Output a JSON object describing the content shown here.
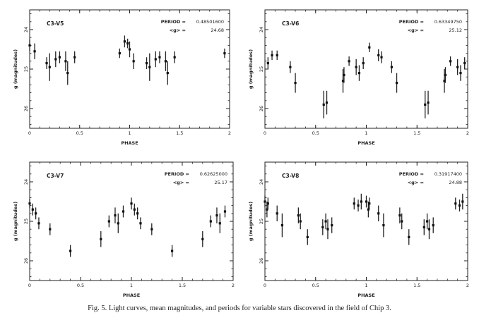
{
  "caption": "Fig. 5. Light curves, mean magnitudes, and periods for variable stars discovered in the field of Chip 3.",
  "chart_data": [
    {
      "type": "scatter",
      "label": "C3-V5",
      "period_label": "PERIOD =",
      "period": "0.48501600",
      "mean_label": "<g> =",
      "mean_g": "24.68",
      "xlabel": "PHASE",
      "ylabel": "g (magnitudes)",
      "xlim": [
        0,
        2
      ],
      "ylim": [
        26.5,
        23.5
      ],
      "xticks": [
        "0",
        "0.5",
        "1",
        "1.5",
        "2"
      ],
      "yticks": [
        "24",
        "25",
        "26"
      ],
      "points": [
        {
          "x": 0.0,
          "y": 24.4,
          "e": 0.15
        },
        {
          "x": 0.05,
          "y": 24.55,
          "e": 0.2
        },
        {
          "x": 0.17,
          "y": 24.85,
          "e": 0.15
        },
        {
          "x": 0.2,
          "y": 24.95,
          "e": 0.35
        },
        {
          "x": 0.26,
          "y": 24.75,
          "e": 0.2
        },
        {
          "x": 0.3,
          "y": 24.7,
          "e": 0.15
        },
        {
          "x": 0.36,
          "y": 24.8,
          "e": 0.25
        },
        {
          "x": 0.38,
          "y": 25.1,
          "e": 0.3
        },
        {
          "x": 0.45,
          "y": 24.7,
          "e": 0.15
        },
        {
          "x": 0.9,
          "y": 24.6,
          "e": 0.12
        },
        {
          "x": 0.95,
          "y": 24.3,
          "e": 0.15
        },
        {
          "x": 0.98,
          "y": 24.35,
          "e": 0.12
        },
        {
          "x": 1.0,
          "y": 24.5,
          "e": 0.2
        },
        {
          "x": 1.04,
          "y": 24.8,
          "e": 0.2
        },
        {
          "x": 1.17,
          "y": 24.85,
          "e": 0.15
        },
        {
          "x": 1.2,
          "y": 24.95,
          "e": 0.35
        },
        {
          "x": 1.26,
          "y": 24.75,
          "e": 0.2
        },
        {
          "x": 1.3,
          "y": 24.7,
          "e": 0.15
        },
        {
          "x": 1.36,
          "y": 24.8,
          "e": 0.25
        },
        {
          "x": 1.38,
          "y": 25.1,
          "e": 0.3
        },
        {
          "x": 1.45,
          "y": 24.7,
          "e": 0.15
        },
        {
          "x": 1.95,
          "y": 24.6,
          "e": 0.12
        }
      ]
    },
    {
      "type": "scatter",
      "label": "C3-V6",
      "period_label": "PERIOD =",
      "period": "0.63349750",
      "mean_label": "<g> =",
      "mean_g": "25.12",
      "xlabel": "PHASE",
      "ylabel": "g (magnitudes)",
      "xlim": [
        0,
        2
      ],
      "ylim": [
        26.5,
        23.5
      ],
      "xticks": [
        "0",
        "0.5",
        "1",
        "1.5",
        "2"
      ],
      "yticks": [
        "24",
        "25",
        "26"
      ],
      "points": [
        {
          "x": 0.03,
          "y": 24.85,
          "e": 0.15
        },
        {
          "x": 0.07,
          "y": 24.65,
          "e": 0.12
        },
        {
          "x": 0.12,
          "y": 24.65,
          "e": 0.12
        },
        {
          "x": 0.25,
          "y": 24.95,
          "e": 0.15
        },
        {
          "x": 0.3,
          "y": 25.35,
          "e": 0.25
        },
        {
          "x": 0.58,
          "y": 25.9,
          "e": 0.35
        },
        {
          "x": 0.61,
          "y": 25.85,
          "e": 0.3
        },
        {
          "x": 0.77,
          "y": 25.3,
          "e": 0.3
        },
        {
          "x": 0.78,
          "y": 25.15,
          "e": 0.2
        },
        {
          "x": 0.83,
          "y": 24.8,
          "e": 0.12
        },
        {
          "x": 0.9,
          "y": 24.95,
          "e": 0.2
        },
        {
          "x": 0.93,
          "y": 25.1,
          "e": 0.2
        },
        {
          "x": 0.97,
          "y": 24.85,
          "e": 0.15
        },
        {
          "x": 1.03,
          "y": 24.45,
          "e": 0.12
        },
        {
          "x": 1.12,
          "y": 24.65,
          "e": 0.15
        },
        {
          "x": 1.15,
          "y": 24.7,
          "e": 0.15
        },
        {
          "x": 1.25,
          "y": 24.95,
          "e": 0.15
        },
        {
          "x": 1.3,
          "y": 25.35,
          "e": 0.25
        },
        {
          "x": 1.58,
          "y": 25.9,
          "e": 0.35
        },
        {
          "x": 1.61,
          "y": 25.85,
          "e": 0.3
        },
        {
          "x": 1.77,
          "y": 25.3,
          "e": 0.3
        },
        {
          "x": 1.78,
          "y": 25.15,
          "e": 0.2
        },
        {
          "x": 1.83,
          "y": 24.8,
          "e": 0.12
        },
        {
          "x": 1.9,
          "y": 24.95,
          "e": 0.2
        },
        {
          "x": 1.93,
          "y": 25.1,
          "e": 0.2
        },
        {
          "x": 1.97,
          "y": 24.85,
          "e": 0.15
        }
      ]
    },
    {
      "type": "scatter",
      "label": "C3-V7",
      "period_label": "PERIOD =",
      "period": "0.62625000",
      "mean_label": "<g> =",
      "mean_g": "25.17",
      "xlabel": "PHASE",
      "ylabel": "g (magnitudes)",
      "xlim": [
        0,
        2
      ],
      "ylim": [
        26.5,
        23.5
      ],
      "xticks": [
        "0",
        "0.5",
        "1",
        "1.5",
        "2"
      ],
      "yticks": [
        "24",
        "25",
        "26"
      ],
      "points": [
        {
          "x": 0.0,
          "y": 24.55,
          "e": 0.12
        },
        {
          "x": 0.03,
          "y": 24.7,
          "e": 0.15
        },
        {
          "x": 0.06,
          "y": 24.8,
          "e": 0.15
        },
        {
          "x": 0.09,
          "y": 25.05,
          "e": 0.15
        },
        {
          "x": 0.2,
          "y": 25.2,
          "e": 0.15
        },
        {
          "x": 0.4,
          "y": 25.75,
          "e": 0.15
        },
        {
          "x": 0.7,
          "y": 25.45,
          "e": 0.2
        },
        {
          "x": 0.78,
          "y": 25.0,
          "e": 0.15
        },
        {
          "x": 0.84,
          "y": 24.85,
          "e": 0.2
        },
        {
          "x": 0.87,
          "y": 25.05,
          "e": 0.25
        },
        {
          "x": 0.92,
          "y": 24.75,
          "e": 0.15
        },
        {
          "x": 1.0,
          "y": 24.55,
          "e": 0.15
        },
        {
          "x": 1.03,
          "y": 24.7,
          "e": 0.15
        },
        {
          "x": 1.06,
          "y": 24.8,
          "e": 0.15
        },
        {
          "x": 1.09,
          "y": 25.05,
          "e": 0.15
        },
        {
          "x": 1.2,
          "y": 25.2,
          "e": 0.15
        },
        {
          "x": 1.4,
          "y": 25.75,
          "e": 0.15
        },
        {
          "x": 1.7,
          "y": 25.45,
          "e": 0.2
        },
        {
          "x": 1.78,
          "y": 25.0,
          "e": 0.15
        },
        {
          "x": 1.84,
          "y": 24.85,
          "e": 0.2
        },
        {
          "x": 1.87,
          "y": 25.05,
          "e": 0.25
        },
        {
          "x": 1.92,
          "y": 24.75,
          "e": 0.15
        }
      ]
    },
    {
      "type": "scatter",
      "label": "C3-V8",
      "period_label": "PERIOD =",
      "period": "0.31917400",
      "mean_label": "<g> =",
      "mean_g": "24.88",
      "xlabel": "PHASE",
      "ylabel": "g (magnitudes)",
      "xlim": [
        0,
        2
      ],
      "ylim": [
        26.5,
        23.5
      ],
      "xticks": [
        "0",
        "0.5",
        "1",
        "1.5",
        "2"
      ],
      "yticks": [
        "24",
        "25",
        "26"
      ],
      "points": [
        {
          "x": 0.0,
          "y": 24.5,
          "e": 0.15
        },
        {
          "x": 0.02,
          "y": 24.7,
          "e": 0.2
        },
        {
          "x": 0.03,
          "y": 24.55,
          "e": 0.15
        },
        {
          "x": 0.12,
          "y": 24.8,
          "e": 0.2
        },
        {
          "x": 0.17,
          "y": 25.1,
          "e": 0.3
        },
        {
          "x": 0.33,
          "y": 24.85,
          "e": 0.2
        },
        {
          "x": 0.35,
          "y": 25.0,
          "e": 0.2
        },
        {
          "x": 0.42,
          "y": 25.4,
          "e": 0.2
        },
        {
          "x": 0.57,
          "y": 25.15,
          "e": 0.2
        },
        {
          "x": 0.6,
          "y": 25.0,
          "e": 0.2
        },
        {
          "x": 0.62,
          "y": 25.2,
          "e": 0.25
        },
        {
          "x": 0.66,
          "y": 25.1,
          "e": 0.2
        },
        {
          "x": 0.88,
          "y": 24.55,
          "e": 0.15
        },
        {
          "x": 0.92,
          "y": 24.6,
          "e": 0.15
        },
        {
          "x": 0.95,
          "y": 24.5,
          "e": 0.2
        },
        {
          "x": 1.0,
          "y": 24.5,
          "e": 0.15
        },
        {
          "x": 1.02,
          "y": 24.7,
          "e": 0.2
        },
        {
          "x": 1.03,
          "y": 24.55,
          "e": 0.15
        },
        {
          "x": 1.12,
          "y": 24.8,
          "e": 0.2
        },
        {
          "x": 1.17,
          "y": 25.1,
          "e": 0.3
        },
        {
          "x": 1.33,
          "y": 24.85,
          "e": 0.2
        },
        {
          "x": 1.35,
          "y": 25.0,
          "e": 0.2
        },
        {
          "x": 1.42,
          "y": 25.4,
          "e": 0.2
        },
        {
          "x": 1.57,
          "y": 25.15,
          "e": 0.2
        },
        {
          "x": 1.6,
          "y": 25.0,
          "e": 0.2
        },
        {
          "x": 1.62,
          "y": 25.2,
          "e": 0.25
        },
        {
          "x": 1.66,
          "y": 25.1,
          "e": 0.2
        },
        {
          "x": 1.88,
          "y": 24.55,
          "e": 0.15
        },
        {
          "x": 1.92,
          "y": 24.6,
          "e": 0.15
        },
        {
          "x": 1.95,
          "y": 24.5,
          "e": 0.2
        }
      ]
    }
  ]
}
